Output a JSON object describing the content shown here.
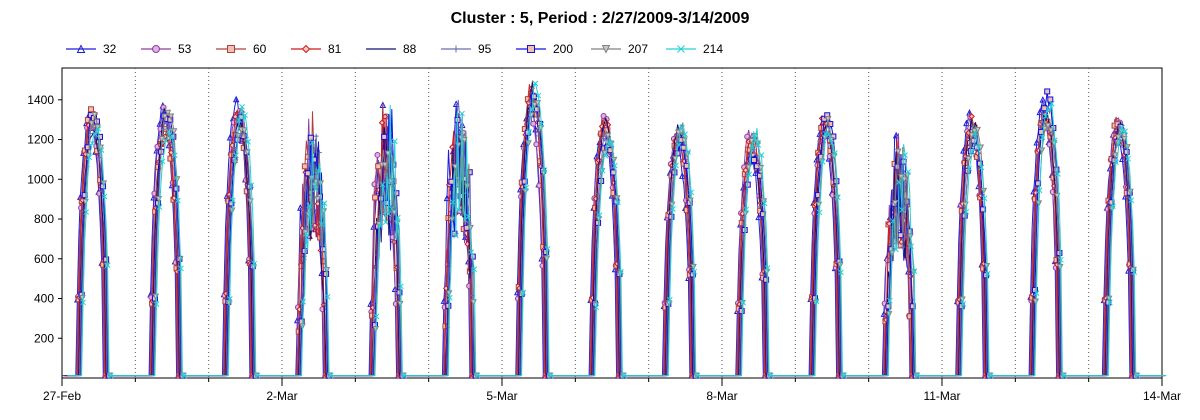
{
  "chart_data": {
    "type": "line",
    "title": "Cluster : 5, Period : 2/27/2009-3/14/2009",
    "xlabel": "",
    "ylabel": "",
    "x_range_days": [
      0,
      15
    ],
    "ylim": [
      0,
      1560
    ],
    "x_ticks": [
      {
        "label": "27-Feb",
        "day": 0
      },
      {
        "label": "2-Mar",
        "day": 3
      },
      {
        "label": "5-Mar",
        "day": 6
      },
      {
        "label": "8-Mar",
        "day": 9
      },
      {
        "label": "11-Mar",
        "day": 12
      },
      {
        "label": "14-Mar",
        "day": 15
      }
    ],
    "y_ticks": [
      200,
      400,
      600,
      800,
      1000,
      1200,
      1400
    ],
    "grid": "vertical dotted lines at each day",
    "legend_position": "top",
    "daily_peaks": [
      1390,
      1400,
      1420,
      1380,
      1460,
      1500,
      1520,
      1350,
      1330,
      1270,
      1420,
      1300,
      1340,
      1470,
      1380
    ],
    "series": [
      {
        "name": "32",
        "color": "#1c1cd9",
        "marker": "triangle-up"
      },
      {
        "name": "53",
        "color": "#8e3f9e",
        "marker": "circle"
      },
      {
        "name": "60",
        "color": "#b04040",
        "marker": "square"
      },
      {
        "name": "81",
        "color": "#d01818",
        "marker": "diamond"
      },
      {
        "name": "88",
        "color": "#101070",
        "marker": "none"
      },
      {
        "name": "95",
        "color": "#6a6ab0",
        "marker": "plus"
      },
      {
        "name": "200",
        "color": "#1010e0",
        "marker": "square"
      },
      {
        "name": "207",
        "color": "#808080",
        "marker": "triangle-down"
      },
      {
        "name": "214",
        "color": "#20d0d8",
        "marker": "x"
      }
    ]
  }
}
